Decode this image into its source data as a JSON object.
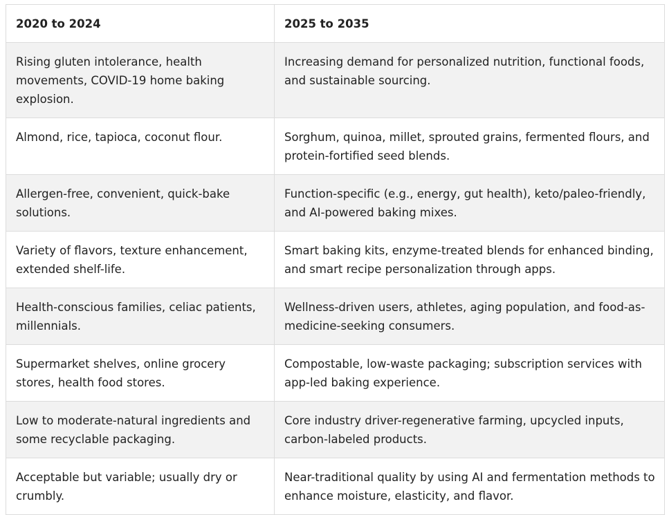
{
  "table": {
    "headers": [
      "2020 to 2024",
      "2025 to 2035"
    ],
    "rows": [
      [
        "Rising gluten intolerance, health movements, COVID-19 home baking explosion.",
        "Increasing demand for personalized nutrition, functional foods, and sustainable sourcing."
      ],
      [
        "Almond, rice, tapioca, coconut flour.",
        "Sorghum, quinoa, millet, sprouted grains, fermented flours, and protein-fortified seed blends."
      ],
      [
        "Allergen-free, convenient, quick-bake solutions.",
        "Function-specific (e.g., energy, gut health), keto/paleo-friendly, and AI-powered baking mixes."
      ],
      [
        "Variety of flavors, texture enhancement, extended shelf-life.",
        "Smart baking kits, enzyme-treated blends for enhanced binding, and smart recipe personalization through apps."
      ],
      [
        "Health-conscious families, celiac patients, millennials.",
        "Wellness-driven users, athletes, aging population, and food-as-medicine-seeking consumers."
      ],
      [
        "Supermarket shelves, online grocery stores, health food stores.",
        "Compostable, low-waste packaging; subscription services with app-led baking experience."
      ],
      [
        "Low to moderate-natural ingredients and some recyclable packaging.",
        "Core industry driver-regenerative farming, upcycled inputs, carbon-labeled products."
      ],
      [
        "Acceptable but variable; usually dry or crumbly.",
        "Near-traditional quality by using AI and fermentation methods to enhance moisture, elasticity, and flavor."
      ]
    ]
  }
}
